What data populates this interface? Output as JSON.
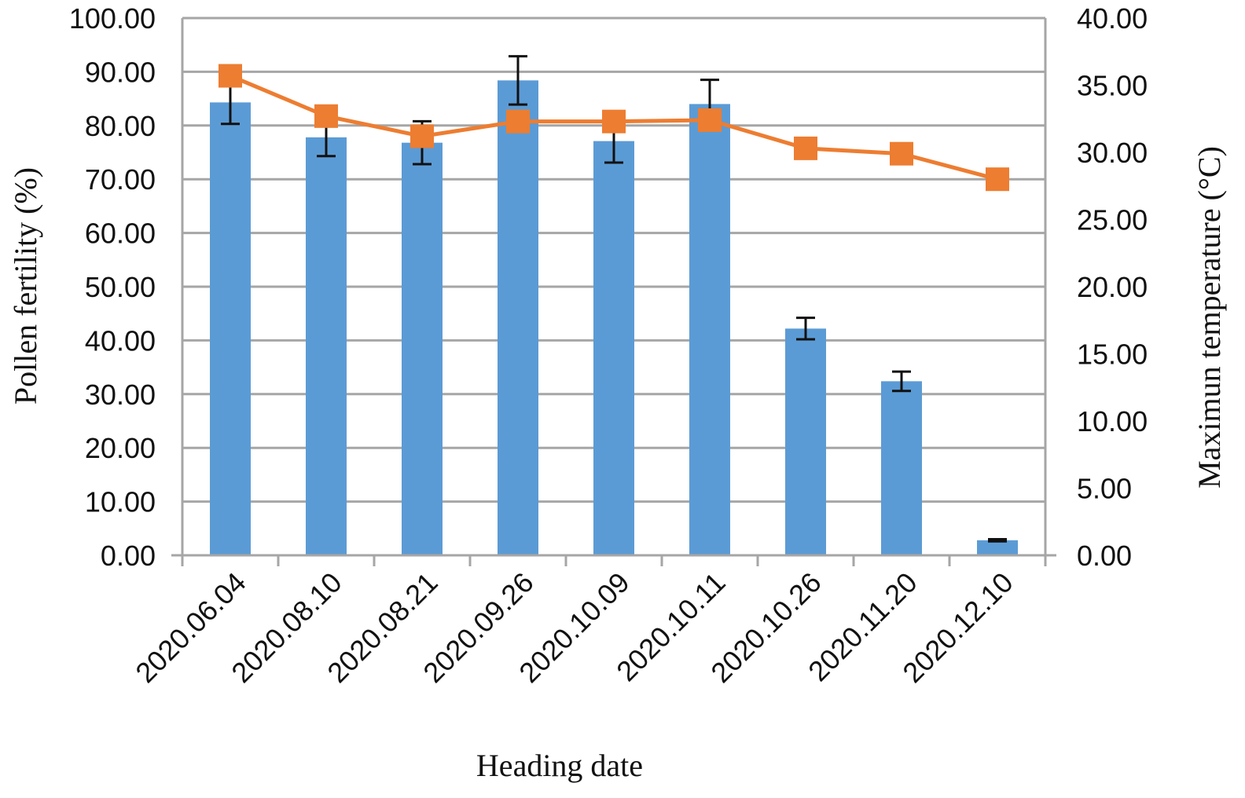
{
  "chart_data": {
    "type": "bar",
    "categories": [
      "2020.06.04",
      "2020.08.10",
      "2020.08.21",
      "2020.09.26",
      "2020.10.09",
      "2020.10.11",
      "2020.10.26",
      "2020.11.20",
      "2020.12.10"
    ],
    "series": [
      {
        "type": "bar",
        "axis": "left",
        "color": "#5b9bd5",
        "values": [
          84.3,
          77.8,
          76.8,
          88.4,
          77.1,
          84.0,
          42.2,
          32.4,
          2.8
        ],
        "errors": [
          4.0,
          3.5,
          4.0,
          4.5,
          4.0,
          4.5,
          2.0,
          1.8,
          0.2
        ]
      },
      {
        "type": "line",
        "axis": "right",
        "color": "#ed7d31",
        "values": [
          35.7,
          32.7,
          31.2,
          32.3,
          32.3,
          32.4,
          30.3,
          29.9,
          28.0
        ]
      }
    ],
    "y_left": {
      "label": "Pollen fertility (%)",
      "ylim": [
        0,
        100
      ],
      "ticks": [
        "0.00",
        "10.00",
        "20.00",
        "30.00",
        "40.00",
        "50.00",
        "60.00",
        "70.00",
        "80.00",
        "90.00",
        "100.00"
      ]
    },
    "y_right": {
      "label": "Maximun temperature (°C)",
      "ylim": [
        0,
        40
      ],
      "ticks": [
        "0.00",
        "5.00",
        "10.00",
        "15.00",
        "20.00",
        "25.00",
        "30.00",
        "35.00",
        "40.00"
      ]
    },
    "xlabel": "Heading date",
    "grid": true,
    "legend": "none"
  }
}
